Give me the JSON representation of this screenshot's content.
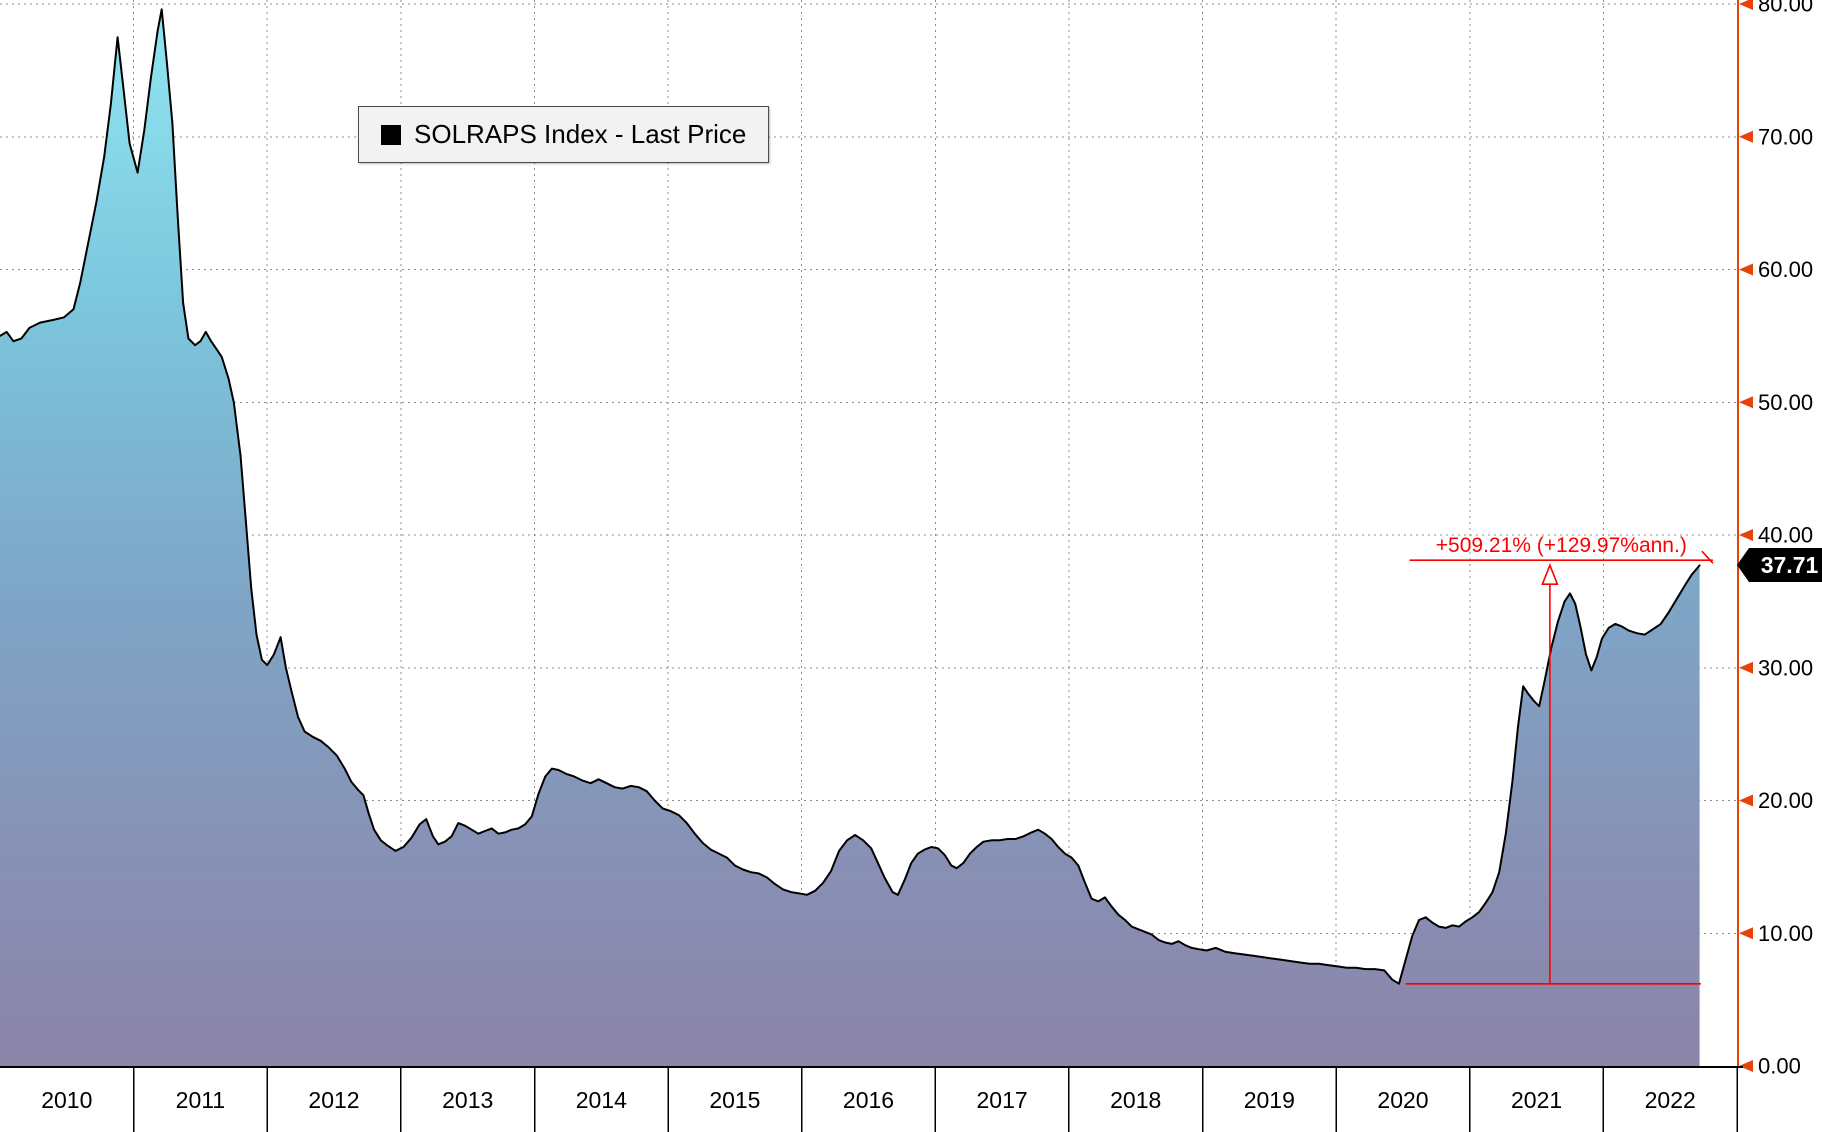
{
  "legend": {
    "label": "SOLRAPS Index - Last Price",
    "swatch_color": "#000000"
  },
  "last_price": {
    "value": 37.71,
    "label": "37.71",
    "bg": "#000000",
    "fg": "#ffffff"
  },
  "annotation": {
    "text": "+509.21% (+129.97%ann.)",
    "color": "#ff0000",
    "top_line": {
      "value": 38.1,
      "from_year": 2020.55,
      "to_year": 2022.82
    },
    "baseline": {
      "value": 6.19,
      "from_year": 2020.52,
      "to_year": 2022.73
    },
    "arrow_year": 2021.6
  },
  "axis_y": {
    "side": "right",
    "color": "#e8420b",
    "tick_values": [
      0,
      10,
      20,
      30,
      40,
      50,
      60,
      70,
      80
    ],
    "tick_labels": [
      "0.00",
      "10.00",
      "20.00",
      "30.00",
      "40.00",
      "50.00",
      "60.00",
      "70.00",
      "80.00"
    ]
  },
  "axis_x": {
    "years": [
      "2010",
      "2011",
      "2012",
      "2013",
      "2014",
      "2015",
      "2016",
      "2017",
      "2018",
      "2019",
      "2020",
      "2021",
      "2022"
    ]
  },
  "chart_data": {
    "type": "area",
    "title": "SOLRAPS Index - Last Price",
    "x_unit": "decimal_year",
    "xlim": [
      2010,
      2023
    ],
    "ylim": [
      0,
      80
    ],
    "grid": "dotted",
    "legend_position": "top-left",
    "colors": {
      "line": "#000000",
      "fill_stops": [
        [
          "0%",
          "#90E6F2"
        ],
        [
          "28%",
          "#7CC6DC"
        ],
        [
          "55%",
          "#7EA6C7"
        ],
        [
          "80%",
          "#8791B5"
        ],
        [
          "100%",
          "#8C84A9"
        ]
      ]
    },
    "series": [
      {
        "name": "SOLRAPS Index - Last Price",
        "points": [
          [
            2010.0,
            55.0
          ],
          [
            2010.05,
            55.3
          ],
          [
            2010.1,
            54.6
          ],
          [
            2010.16,
            54.8
          ],
          [
            2010.22,
            55.6
          ],
          [
            2010.3,
            56.0
          ],
          [
            2010.4,
            56.2
          ],
          [
            2010.48,
            56.4
          ],
          [
            2010.55,
            57.0
          ],
          [
            2010.6,
            59.0
          ],
          [
            2010.66,
            62.0
          ],
          [
            2010.72,
            65.0
          ],
          [
            2010.78,
            68.5
          ],
          [
            2010.83,
            72.5
          ],
          [
            2010.88,
            77.5
          ],
          [
            2010.92,
            74.0
          ],
          [
            2010.97,
            69.5
          ],
          [
            2011.03,
            67.3
          ],
          [
            2011.08,
            70.5
          ],
          [
            2011.13,
            74.5
          ],
          [
            2011.18,
            78.0
          ],
          [
            2011.21,
            79.6
          ],
          [
            2011.25,
            75.5
          ],
          [
            2011.29,
            71.0
          ],
          [
            2011.33,
            64.0
          ],
          [
            2011.37,
            57.5
          ],
          [
            2011.41,
            54.8
          ],
          [
            2011.46,
            54.3
          ],
          [
            2011.5,
            54.6
          ],
          [
            2011.54,
            55.3
          ],
          [
            2011.58,
            54.6
          ],
          [
            2011.62,
            54.0
          ],
          [
            2011.66,
            53.4
          ],
          [
            2011.71,
            51.8
          ],
          [
            2011.75,
            50.0
          ],
          [
            2011.8,
            46.0
          ],
          [
            2011.84,
            41.0
          ],
          [
            2011.88,
            36.0
          ],
          [
            2011.92,
            32.5
          ],
          [
            2011.96,
            30.6
          ],
          [
            2012.0,
            30.2
          ],
          [
            2012.05,
            31.0
          ],
          [
            2012.1,
            32.3
          ],
          [
            2012.14,
            30.0
          ],
          [
            2012.18,
            28.3
          ],
          [
            2012.23,
            26.3
          ],
          [
            2012.28,
            25.2
          ],
          [
            2012.34,
            24.8
          ],
          [
            2012.4,
            24.5
          ],
          [
            2012.46,
            24.0
          ],
          [
            2012.52,
            23.4
          ],
          [
            2012.58,
            22.4
          ],
          [
            2012.63,
            21.4
          ],
          [
            2012.68,
            20.8
          ],
          [
            2012.72,
            20.4
          ],
          [
            2012.76,
            19.0
          ],
          [
            2012.8,
            17.8
          ],
          [
            2012.85,
            17.0
          ],
          [
            2012.9,
            16.6
          ],
          [
            2012.96,
            16.2
          ],
          [
            2013.02,
            16.5
          ],
          [
            2013.08,
            17.2
          ],
          [
            2013.14,
            18.2
          ],
          [
            2013.19,
            18.6
          ],
          [
            2013.24,
            17.3
          ],
          [
            2013.28,
            16.7
          ],
          [
            2013.33,
            16.9
          ],
          [
            2013.38,
            17.3
          ],
          [
            2013.43,
            18.3
          ],
          [
            2013.48,
            18.1
          ],
          [
            2013.53,
            17.8
          ],
          [
            2013.58,
            17.5
          ],
          [
            2013.63,
            17.7
          ],
          [
            2013.68,
            17.9
          ],
          [
            2013.73,
            17.5
          ],
          [
            2013.78,
            17.6
          ],
          [
            2013.83,
            17.8
          ],
          [
            2013.88,
            17.9
          ],
          [
            2013.93,
            18.2
          ],
          [
            2013.98,
            18.8
          ],
          [
            2014.03,
            20.5
          ],
          [
            2014.08,
            21.8
          ],
          [
            2014.13,
            22.4
          ],
          [
            2014.18,
            22.3
          ],
          [
            2014.24,
            22.0
          ],
          [
            2014.3,
            21.8
          ],
          [
            2014.36,
            21.5
          ],
          [
            2014.42,
            21.3
          ],
          [
            2014.48,
            21.6
          ],
          [
            2014.54,
            21.3
          ],
          [
            2014.6,
            21.0
          ],
          [
            2014.66,
            20.9
          ],
          [
            2014.72,
            21.1
          ],
          [
            2014.78,
            21.0
          ],
          [
            2014.84,
            20.7
          ],
          [
            2014.9,
            20.0
          ],
          [
            2014.96,
            19.4
          ],
          [
            2015.02,
            19.2
          ],
          [
            2015.08,
            18.9
          ],
          [
            2015.14,
            18.3
          ],
          [
            2015.2,
            17.5
          ],
          [
            2015.26,
            16.8
          ],
          [
            2015.32,
            16.3
          ],
          [
            2015.38,
            16.0
          ],
          [
            2015.44,
            15.7
          ],
          [
            2015.5,
            15.1
          ],
          [
            2015.56,
            14.8
          ],
          [
            2015.62,
            14.6
          ],
          [
            2015.68,
            14.5
          ],
          [
            2015.74,
            14.2
          ],
          [
            2015.8,
            13.7
          ],
          [
            2015.86,
            13.3
          ],
          [
            2015.92,
            13.1
          ],
          [
            2015.98,
            13.0
          ],
          [
            2016.04,
            12.9
          ],
          [
            2016.1,
            13.2
          ],
          [
            2016.16,
            13.8
          ],
          [
            2016.22,
            14.7
          ],
          [
            2016.28,
            16.2
          ],
          [
            2016.34,
            17.0
          ],
          [
            2016.4,
            17.4
          ],
          [
            2016.46,
            17.0
          ],
          [
            2016.52,
            16.4
          ],
          [
            2016.57,
            15.3
          ],
          [
            2016.62,
            14.2
          ],
          [
            2016.68,
            13.1
          ],
          [
            2016.72,
            12.9
          ],
          [
            2016.77,
            14.0
          ],
          [
            2016.82,
            15.3
          ],
          [
            2016.87,
            16.0
          ],
          [
            2016.92,
            16.3
          ],
          [
            2016.97,
            16.5
          ],
          [
            2017.02,
            16.4
          ],
          [
            2017.07,
            15.9
          ],
          [
            2017.12,
            15.1
          ],
          [
            2017.16,
            14.9
          ],
          [
            2017.21,
            15.3
          ],
          [
            2017.26,
            16.0
          ],
          [
            2017.31,
            16.5
          ],
          [
            2017.36,
            16.9
          ],
          [
            2017.42,
            17.0
          ],
          [
            2017.48,
            17.0
          ],
          [
            2017.54,
            17.1
          ],
          [
            2017.6,
            17.1
          ],
          [
            2017.66,
            17.3
          ],
          [
            2017.72,
            17.6
          ],
          [
            2017.77,
            17.8
          ],
          [
            2017.82,
            17.5
          ],
          [
            2017.87,
            17.1
          ],
          [
            2017.92,
            16.5
          ],
          [
            2017.97,
            16.0
          ],
          [
            2018.02,
            15.7
          ],
          [
            2018.07,
            15.1
          ],
          [
            2018.12,
            13.8
          ],
          [
            2018.17,
            12.6
          ],
          [
            2018.22,
            12.4
          ],
          [
            2018.27,
            12.7
          ],
          [
            2018.32,
            12.0
          ],
          [
            2018.37,
            11.4
          ],
          [
            2018.42,
            11.0
          ],
          [
            2018.47,
            10.5
          ],
          [
            2018.52,
            10.3
          ],
          [
            2018.57,
            10.1
          ],
          [
            2018.62,
            9.9
          ],
          [
            2018.67,
            9.5
          ],
          [
            2018.72,
            9.3
          ],
          [
            2018.77,
            9.2
          ],
          [
            2018.82,
            9.4
          ],
          [
            2018.87,
            9.1
          ],
          [
            2018.92,
            8.9
          ],
          [
            2018.97,
            8.8
          ],
          [
            2019.03,
            8.7
          ],
          [
            2019.1,
            8.9
          ],
          [
            2019.17,
            8.6
          ],
          [
            2019.24,
            8.5
          ],
          [
            2019.31,
            8.4
          ],
          [
            2019.38,
            8.3
          ],
          [
            2019.45,
            8.2
          ],
          [
            2019.52,
            8.1
          ],
          [
            2019.59,
            8.0
          ],
          [
            2019.66,
            7.9
          ],
          [
            2019.73,
            7.8
          ],
          [
            2019.8,
            7.7
          ],
          [
            2019.87,
            7.7
          ],
          [
            2019.94,
            7.6
          ],
          [
            2020.01,
            7.5
          ],
          [
            2020.08,
            7.4
          ],
          [
            2020.15,
            7.4
          ],
          [
            2020.22,
            7.3
          ],
          [
            2020.29,
            7.3
          ],
          [
            2020.36,
            7.2
          ],
          [
            2020.42,
            6.5
          ],
          [
            2020.47,
            6.2
          ],
          [
            2020.52,
            8.0
          ],
          [
            2020.57,
            9.8
          ],
          [
            2020.62,
            11.0
          ],
          [
            2020.67,
            11.2
          ],
          [
            2020.72,
            10.8
          ],
          [
            2020.77,
            10.5
          ],
          [
            2020.82,
            10.4
          ],
          [
            2020.87,
            10.6
          ],
          [
            2020.92,
            10.5
          ],
          [
            2020.97,
            10.9
          ],
          [
            2021.02,
            11.2
          ],
          [
            2021.07,
            11.6
          ],
          [
            2021.12,
            12.3
          ],
          [
            2021.17,
            13.1
          ],
          [
            2021.22,
            14.6
          ],
          [
            2021.27,
            17.5
          ],
          [
            2021.32,
            21.5
          ],
          [
            2021.36,
            25.5
          ],
          [
            2021.4,
            28.6
          ],
          [
            2021.44,
            28.0
          ],
          [
            2021.48,
            27.5
          ],
          [
            2021.52,
            27.1
          ],
          [
            2021.56,
            29.0
          ],
          [
            2021.61,
            31.5
          ],
          [
            2021.66,
            33.5
          ],
          [
            2021.71,
            35.0
          ],
          [
            2021.75,
            35.6
          ],
          [
            2021.79,
            34.8
          ],
          [
            2021.83,
            33.0
          ],
          [
            2021.87,
            31.0
          ],
          [
            2021.91,
            29.8
          ],
          [
            2021.95,
            30.8
          ],
          [
            2021.99,
            32.2
          ],
          [
            2022.04,
            33.0
          ],
          [
            2022.09,
            33.3
          ],
          [
            2022.14,
            33.1
          ],
          [
            2022.19,
            32.8
          ],
          [
            2022.25,
            32.6
          ],
          [
            2022.31,
            32.5
          ],
          [
            2022.37,
            32.9
          ],
          [
            2022.43,
            33.3
          ],
          [
            2022.49,
            34.2
          ],
          [
            2022.55,
            35.2
          ],
          [
            2022.61,
            36.2
          ],
          [
            2022.66,
            37.0
          ],
          [
            2022.72,
            37.71
          ]
        ]
      }
    ]
  }
}
